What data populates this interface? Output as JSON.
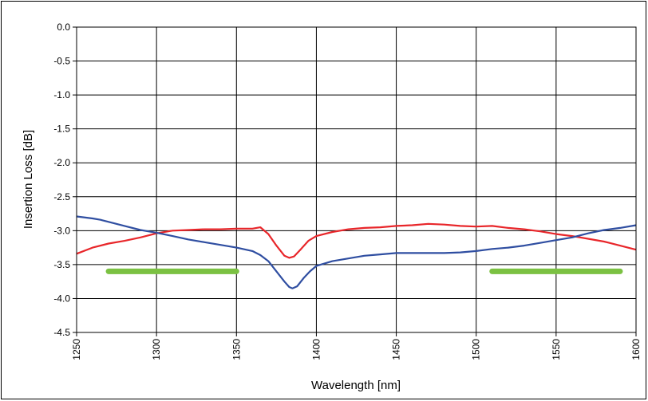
{
  "chart_data": {
    "type": "line",
    "title": "",
    "xlabel": "Wavelength [nm]",
    "ylabel": "Insertion Loss [dB]",
    "xlim": [
      1250,
      1600
    ],
    "ylim": [
      -4.5,
      0.0
    ],
    "x_ticks": [
      1250,
      1300,
      1350,
      1400,
      1450,
      1500,
      1550,
      1600
    ],
    "y_ticks": [
      0.0,
      -0.5,
      -1.0,
      -1.5,
      -2.0,
      -2.5,
      -3.0,
      -3.5,
      -4.0,
      -4.5
    ],
    "x_tick_labels": [
      "1250",
      "1300",
      "1350",
      "1400",
      "1450",
      "1500",
      "1550",
      "1600"
    ],
    "y_tick_labels": [
      "0.0",
      "-0.5",
      "-1.0",
      "-1.5",
      "-2.0",
      "-2.5",
      "-3.0",
      "-3.5",
      "-4.0",
      "-4.5"
    ],
    "grid": true,
    "legend": "none",
    "series": [
      {
        "color": "#e8262a",
        "x": [
          1250,
          1260,
          1270,
          1280,
          1290,
          1300,
          1310,
          1320,
          1330,
          1340,
          1350,
          1360,
          1365,
          1370,
          1375,
          1380,
          1383,
          1386,
          1390,
          1395,
          1400,
          1410,
          1420,
          1430,
          1440,
          1450,
          1460,
          1470,
          1480,
          1490,
          1500,
          1510,
          1520,
          1530,
          1540,
          1550,
          1560,
          1570,
          1580,
          1590,
          1600
        ],
        "y": [
          -3.34,
          -3.25,
          -3.19,
          -3.15,
          -3.1,
          -3.04,
          -3.0,
          -2.99,
          -2.98,
          -2.98,
          -2.97,
          -2.97,
          -2.95,
          -3.05,
          -3.22,
          -3.37,
          -3.4,
          -3.38,
          -3.28,
          -3.15,
          -3.08,
          -3.02,
          -2.98,
          -2.96,
          -2.95,
          -2.93,
          -2.92,
          -2.9,
          -2.91,
          -2.93,
          -2.94,
          -2.93,
          -2.96,
          -2.98,
          -3.01,
          -3.05,
          -3.08,
          -3.12,
          -3.16,
          -3.22,
          -3.28
        ]
      },
      {
        "color": "#2f4ea1",
        "x": [
          1250,
          1260,
          1265,
          1270,
          1280,
          1290,
          1300,
          1310,
          1320,
          1330,
          1340,
          1350,
          1360,
          1365,
          1370,
          1375,
          1380,
          1383,
          1385,
          1388,
          1392,
          1396,
          1400,
          1410,
          1420,
          1430,
          1440,
          1450,
          1460,
          1470,
          1480,
          1490,
          1500,
          1510,
          1520,
          1530,
          1540,
          1550,
          1560,
          1570,
          1580,
          1590,
          1600
        ],
        "y": [
          -2.79,
          -2.82,
          -2.84,
          -2.87,
          -2.93,
          -2.99,
          -3.03,
          -3.08,
          -3.13,
          -3.17,
          -3.21,
          -3.25,
          -3.3,
          -3.36,
          -3.45,
          -3.6,
          -3.75,
          -3.83,
          -3.85,
          -3.82,
          -3.7,
          -3.6,
          -3.52,
          -3.45,
          -3.41,
          -3.37,
          -3.35,
          -3.33,
          -3.33,
          -3.33,
          -3.33,
          -3.32,
          -3.3,
          -3.27,
          -3.25,
          -3.22,
          -3.18,
          -3.14,
          -3.1,
          -3.04,
          -2.99,
          -2.96,
          -2.92
        ]
      }
    ],
    "bands": [
      {
        "color": "#7bc142",
        "x": [
          1270,
          1350
        ],
        "y": -3.6
      },
      {
        "color": "#7bc142",
        "x": [
          1510,
          1590
        ],
        "y": -3.6
      }
    ]
  }
}
